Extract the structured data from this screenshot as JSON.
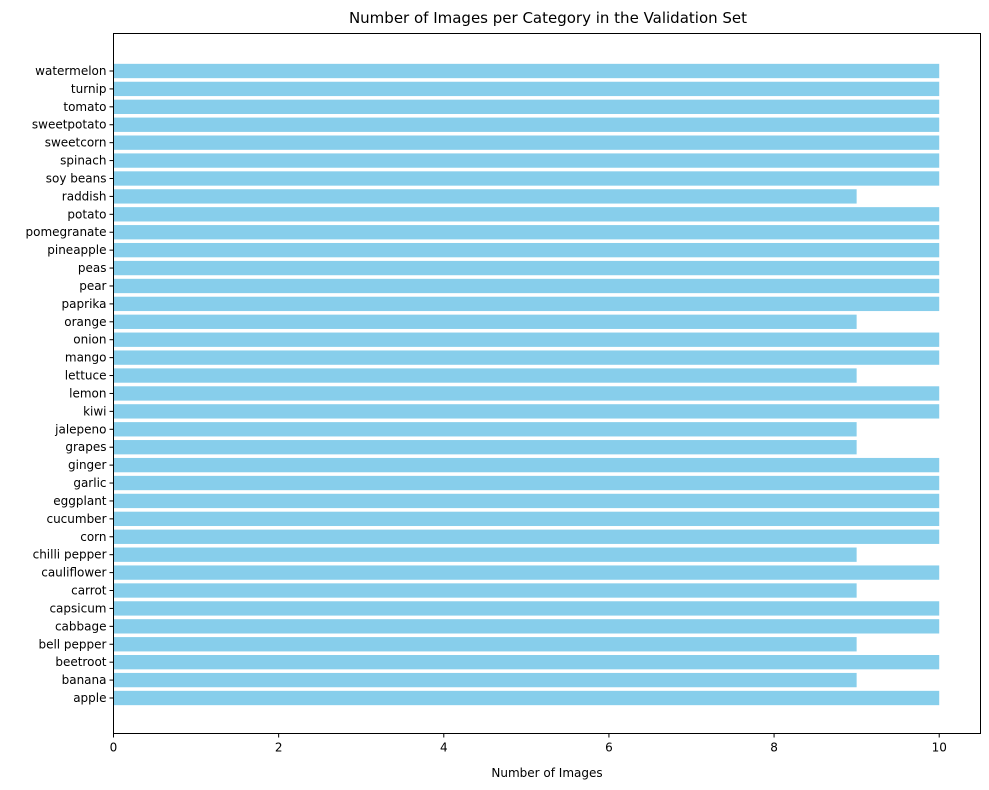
{
  "chart_data": {
    "type": "bar",
    "orientation": "horizontal",
    "title": "Number of Images per Category in the Validation Set",
    "xlabel": "Number of Images",
    "ylabel": "",
    "xlim": [
      0,
      10.5
    ],
    "xticks": [
      0,
      2,
      4,
      6,
      8,
      10
    ],
    "grid": false,
    "bar_color": "#87ceeb",
    "categories": [
      "apple",
      "banana",
      "beetroot",
      "bell pepper",
      "cabbage",
      "capsicum",
      "carrot",
      "cauliflower",
      "chilli pepper",
      "corn",
      "cucumber",
      "eggplant",
      "garlic",
      "ginger",
      "grapes",
      "jalepeno",
      "kiwi",
      "lemon",
      "lettuce",
      "mango",
      "onion",
      "orange",
      "paprika",
      "pear",
      "peas",
      "pineapple",
      "pomegranate",
      "potato",
      "raddish",
      "soy beans",
      "spinach",
      "sweetcorn",
      "sweetpotato",
      "tomato",
      "turnip",
      "watermelon"
    ],
    "values": [
      10,
      9,
      10,
      9,
      10,
      10,
      9,
      10,
      9,
      10,
      10,
      10,
      10,
      10,
      9,
      9,
      10,
      10,
      9,
      10,
      10,
      9,
      10,
      10,
      10,
      10,
      10,
      10,
      9,
      10,
      10,
      10,
      10,
      10,
      10,
      10
    ]
  }
}
